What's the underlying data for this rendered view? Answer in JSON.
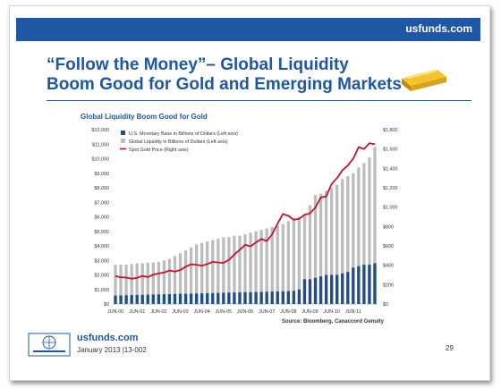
{
  "header": {
    "url": "usfunds.com"
  },
  "slide": {
    "title_line1": "“Follow the Money”– Global Liquidity",
    "title_line2": "Boom Good for Gold and Emerging Markets"
  },
  "footer": {
    "url": "usfunds.com",
    "date": "January 2013 |13-002",
    "page": "29"
  },
  "colors": {
    "brand_blue": "#1e57a6",
    "monetary_base": "#1f4e8c",
    "liquidity": "#bdbdbd",
    "gold_line": "#c8102e"
  },
  "icons": [
    "gold-bar-icon",
    "us-global-investors-logo"
  ],
  "chart_data": {
    "type": "bar",
    "title": "Global Liquidity Boom Good for Gold",
    "source": "Source: Bloomberg, Canaccord Genuity",
    "legend_position": "top-left",
    "legend": [
      "U.S. Monetary Base in Billions of Dollars (Left axis)",
      "Global Liquidity in Billions of Dollars (Left axis)",
      "Spot Gold Price (Right axis)"
    ],
    "left_axis": {
      "min": 0,
      "max": 12000,
      "ticks": [
        "$0",
        "$1,000",
        "$2,000",
        "$3,000",
        "$4,000",
        "$5,000",
        "$6,000",
        "$7,000",
        "$8,000",
        "$9,000",
        "$10,000",
        "$11,000",
        "$12,000"
      ]
    },
    "right_axis": {
      "min": 0,
      "max": 1800,
      "ticks": [
        "$0",
        "$200",
        "$400",
        "$600",
        "$800",
        "$1,000",
        "$1,200",
        "$1,400",
        "$1,600",
        "$1,800"
      ]
    },
    "x_tick_labels": [
      "JUN-00",
      "JUN-01",
      "JUN-02",
      "JUN-03",
      "JUN-04",
      "JUN-05",
      "JUN-06",
      "JUN-07",
      "JUN-08",
      "JUN-09",
      "JUN-10",
      "JUN-11"
    ],
    "periods": [
      "Jun-00",
      "Sep-00",
      "Dec-00",
      "Mar-01",
      "Jun-01",
      "Sep-01",
      "Dec-01",
      "Mar-02",
      "Jun-02",
      "Sep-02",
      "Dec-02",
      "Mar-03",
      "Jun-03",
      "Sep-03",
      "Dec-03",
      "Mar-04",
      "Jun-04",
      "Sep-04",
      "Dec-04",
      "Mar-05",
      "Jun-05",
      "Sep-05",
      "Dec-05",
      "Mar-06",
      "Jun-06",
      "Sep-06",
      "Dec-06",
      "Mar-07",
      "Jun-07",
      "Sep-07",
      "Dec-07",
      "Mar-08",
      "Jun-08",
      "Sep-08",
      "Dec-08",
      "Mar-09",
      "Jun-09",
      "Sep-09",
      "Dec-09",
      "Mar-10",
      "Jun-10",
      "Sep-10",
      "Dec-10",
      "Mar-11",
      "Jun-11",
      "Sep-11",
      "Dec-11",
      "Mar-12",
      "Jun-12"
    ],
    "series": [
      {
        "name": "U.S. Monetary Base in Billions of Dollars (Left axis)",
        "kind": "bar",
        "values": [
          580,
          590,
          600,
          610,
          620,
          630,
          640,
          650,
          660,
          670,
          680,
          690,
          700,
          700,
          710,
          720,
          730,
          740,
          750,
          760,
          770,
          780,
          790,
          800,
          810,
          810,
          820,
          830,
          840,
          850,
          860,
          870,
          880,
          900,
          1000,
          1700,
          1700,
          1800,
          1900,
          2000,
          2000,
          2000,
          2100,
          2200,
          2500,
          2600,
          2700,
          2700,
          2800
        ]
      },
      {
        "name": "Global Liquidity in Billions of Dollars (Left axis)",
        "kind": "bar",
        "values": [
          2700,
          2700,
          2700,
          2750,
          2800,
          2800,
          2850,
          2850,
          2900,
          3000,
          3100,
          3300,
          3500,
          3700,
          3900,
          4100,
          4200,
          4300,
          4400,
          4500,
          4600,
          4600,
          4700,
          4700,
          4800,
          4900,
          5000,
          5100,
          5200,
          5300,
          5400,
          5500,
          5700,
          5900,
          6000,
          6200,
          6800,
          7500,
          7600,
          7800,
          8000,
          8200,
          8600,
          8800,
          9000,
          9400,
          9700,
          10100,
          10800
        ]
      },
      {
        "name": "Spot Gold Price (Right axis)",
        "kind": "line",
        "values": [
          288,
          275,
          272,
          260,
          270,
          290,
          278,
          302,
          315,
          325,
          345,
          335,
          350,
          385,
          410,
          405,
          395,
          412,
          435,
          428,
          425,
          455,
          510,
          560,
          610,
          595,
          635,
          670,
          650,
          720,
          830,
          930,
          910,
          870,
          880,
          920,
          935,
          995,
          1100,
          1110,
          1240,
          1300,
          1380,
          1430,
          1500,
          1620,
          1600,
          1660,
          1650
        ]
      }
    ]
  }
}
